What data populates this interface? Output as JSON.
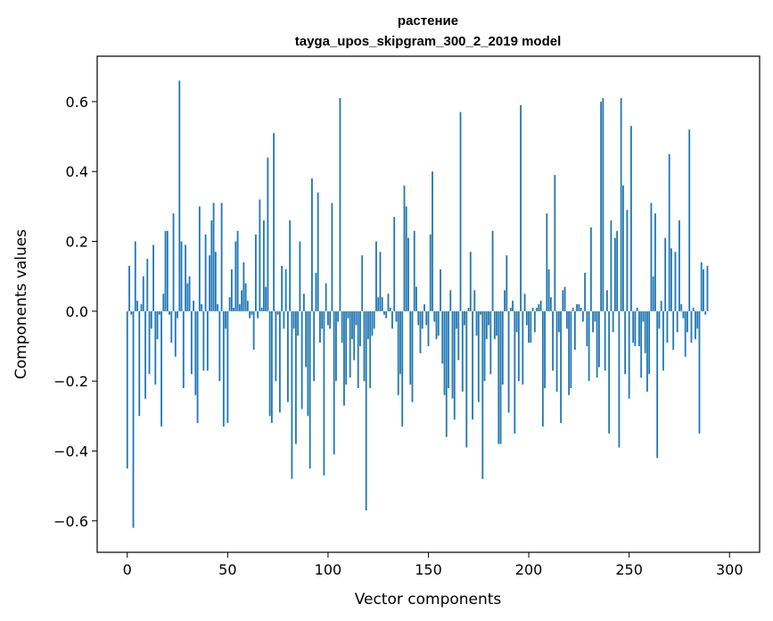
{
  "chart_data": {
    "type": "bar",
    "title_line1": "растение",
    "title_line2": "tayga_upos_skipgram_300_2_2019 model",
    "xlabel": "Vector components",
    "ylabel": "Components values",
    "xlim": [
      -15,
      315
    ],
    "ylim": [
      -0.69,
      0.73
    ],
    "xticks": [
      0,
      50,
      100,
      150,
      200,
      250,
      300
    ],
    "xtick_labels": [
      "0",
      "50",
      "100",
      "150",
      "200",
      "250",
      "300"
    ],
    "yticks": [
      -0.6,
      -0.4,
      -0.2,
      0.0,
      0.2,
      0.4,
      0.6
    ],
    "ytick_labels": [
      "−0.6",
      "−0.4",
      "−0.2",
      "0.0",
      "0.2",
      "0.4",
      "0.6"
    ],
    "bar_color": "#1f77b4",
    "values": [
      -0.45,
      0.13,
      -0.01,
      -0.62,
      0.2,
      0.03,
      -0.3,
      0.02,
      0.1,
      -0.25,
      0.15,
      -0.18,
      -0.05,
      0.19,
      -0.21,
      -0.08,
      -0.01,
      -0.33,
      0.05,
      0.23,
      0.23,
      -0.01,
      -0.09,
      0.28,
      -0.13,
      -0.02,
      0.66,
      0.2,
      -0.22,
      0.19,
      0.08,
      0.1,
      -0.18,
      0.03,
      -0.24,
      -0.32,
      0.3,
      0.02,
      -0.17,
      0.22,
      -0.17,
      0.16,
      0.26,
      0.31,
      0.17,
      0.02,
      -0.2,
      0.31,
      -0.33,
      -0.05,
      -0.32,
      0.04,
      0.12,
      0.01,
      0.2,
      0.23,
      0.02,
      0.06,
      0.14,
      0.08,
      0.03,
      -0.02,
      -0.01,
      -0.11,
      0.22,
      -0.02,
      0.32,
      0.01,
      0.26,
      0.07,
      0.44,
      -0.3,
      -0.32,
      0.51,
      -0.2,
      -0.01,
      -0.29,
      0.13,
      -0.05,
      0.12,
      -0.26,
      0.26,
      -0.48,
      -0.05,
      -0.38,
      -0.07,
      0.2,
      -0.28,
      0.05,
      -0.16,
      -0.3,
      -0.45,
      0.38,
      -0.2,
      0.11,
      0.34,
      -0.09,
      -0.05,
      -0.47,
      0.08,
      -0.04,
      -0.05,
      0.31,
      -0.41,
      -0.2,
      -0.03,
      0.61,
      -0.09,
      -0.27,
      -0.21,
      -0.02,
      -0.19,
      -0.08,
      -0.14,
      -0.04,
      -0.22,
      -0.1,
      0.16,
      -0.2,
      -0.57,
      -0.08,
      -0.22,
      -0.07,
      -0.05,
      0.2,
      0.04,
      0.17,
      0.04,
      -0.01,
      -0.02,
      0.05,
      0.01,
      -0.05,
      0.27,
      -0.03,
      -0.24,
      -0.18,
      -0.33,
      0.36,
      0.3,
      0.21,
      -0.21,
      -0.26,
      0.23,
      0.07,
      -0.04,
      -0.12,
      -0.05,
      0.02,
      -0.04,
      -0.1,
      0.22,
      0.4,
      -0.03,
      -0.08,
      -0.07,
      0.12,
      -0.15,
      -0.24,
      -0.36,
      -0.22,
      0.06,
      -0.25,
      -0.31,
      -0.05,
      -0.14,
      0.57,
      -0.23,
      -0.04,
      -0.39,
      0.01,
      0.17,
      -0.31,
      0.06,
      -0.07,
      -0.26,
      -0.01,
      -0.48,
      -0.2,
      -0.08,
      -0.04,
      -0.18,
      0.23,
      -0.08,
      -0.07,
      -0.38,
      -0.38,
      -0.21,
      0.06,
      0.16,
      -0.29,
      0.01,
      0.03,
      -0.35,
      -0.06,
      -0.2,
      0.59,
      -0.21,
      0.05,
      -0.04,
      -0.09,
      -0.09,
      0.01,
      -0.06,
      0.01,
      0.02,
      0.03,
      -0.33,
      -0.22,
      0.28,
      0.12,
      0.04,
      -0.17,
      0.39,
      -0.23,
      -0.06,
      -0.32,
      0.06,
      0.07,
      -0.05,
      -0.24,
      -0.22,
      0.01,
      -0.11,
      0.02,
      0.02,
      0.01,
      -0.03,
      0.11,
      -0.1,
      -0.2,
      0.24,
      -0.06,
      -0.03,
      -0.19,
      -0.16,
      0.6,
      0.61,
      -0.17,
      0.06,
      -0.35,
      0.26,
      -0.06,
      0.21,
      0.23,
      -0.39,
      0.61,
      0.36,
      -0.18,
      0.29,
      -0.25,
      0.53,
      -0.09,
      -0.1,
      0.01,
      -0.1,
      -0.19,
      -0.03,
      -0.12,
      -0.23,
      -0.18,
      0.31,
      0.1,
      0.28,
      -0.42,
      -0.05,
      0.03,
      -0.17,
      0.21,
      -0.09,
      0.45,
      0.18,
      -0.11,
      0.17,
      -0.06,
      0.26,
      0.02,
      -0.02,
      -0.13,
      -0.06,
      0.52,
      -0.09,
      0.01,
      -0.08,
      -0.05,
      -0.35,
      0.14,
      0.12,
      -0.01,
      0.13
    ]
  }
}
